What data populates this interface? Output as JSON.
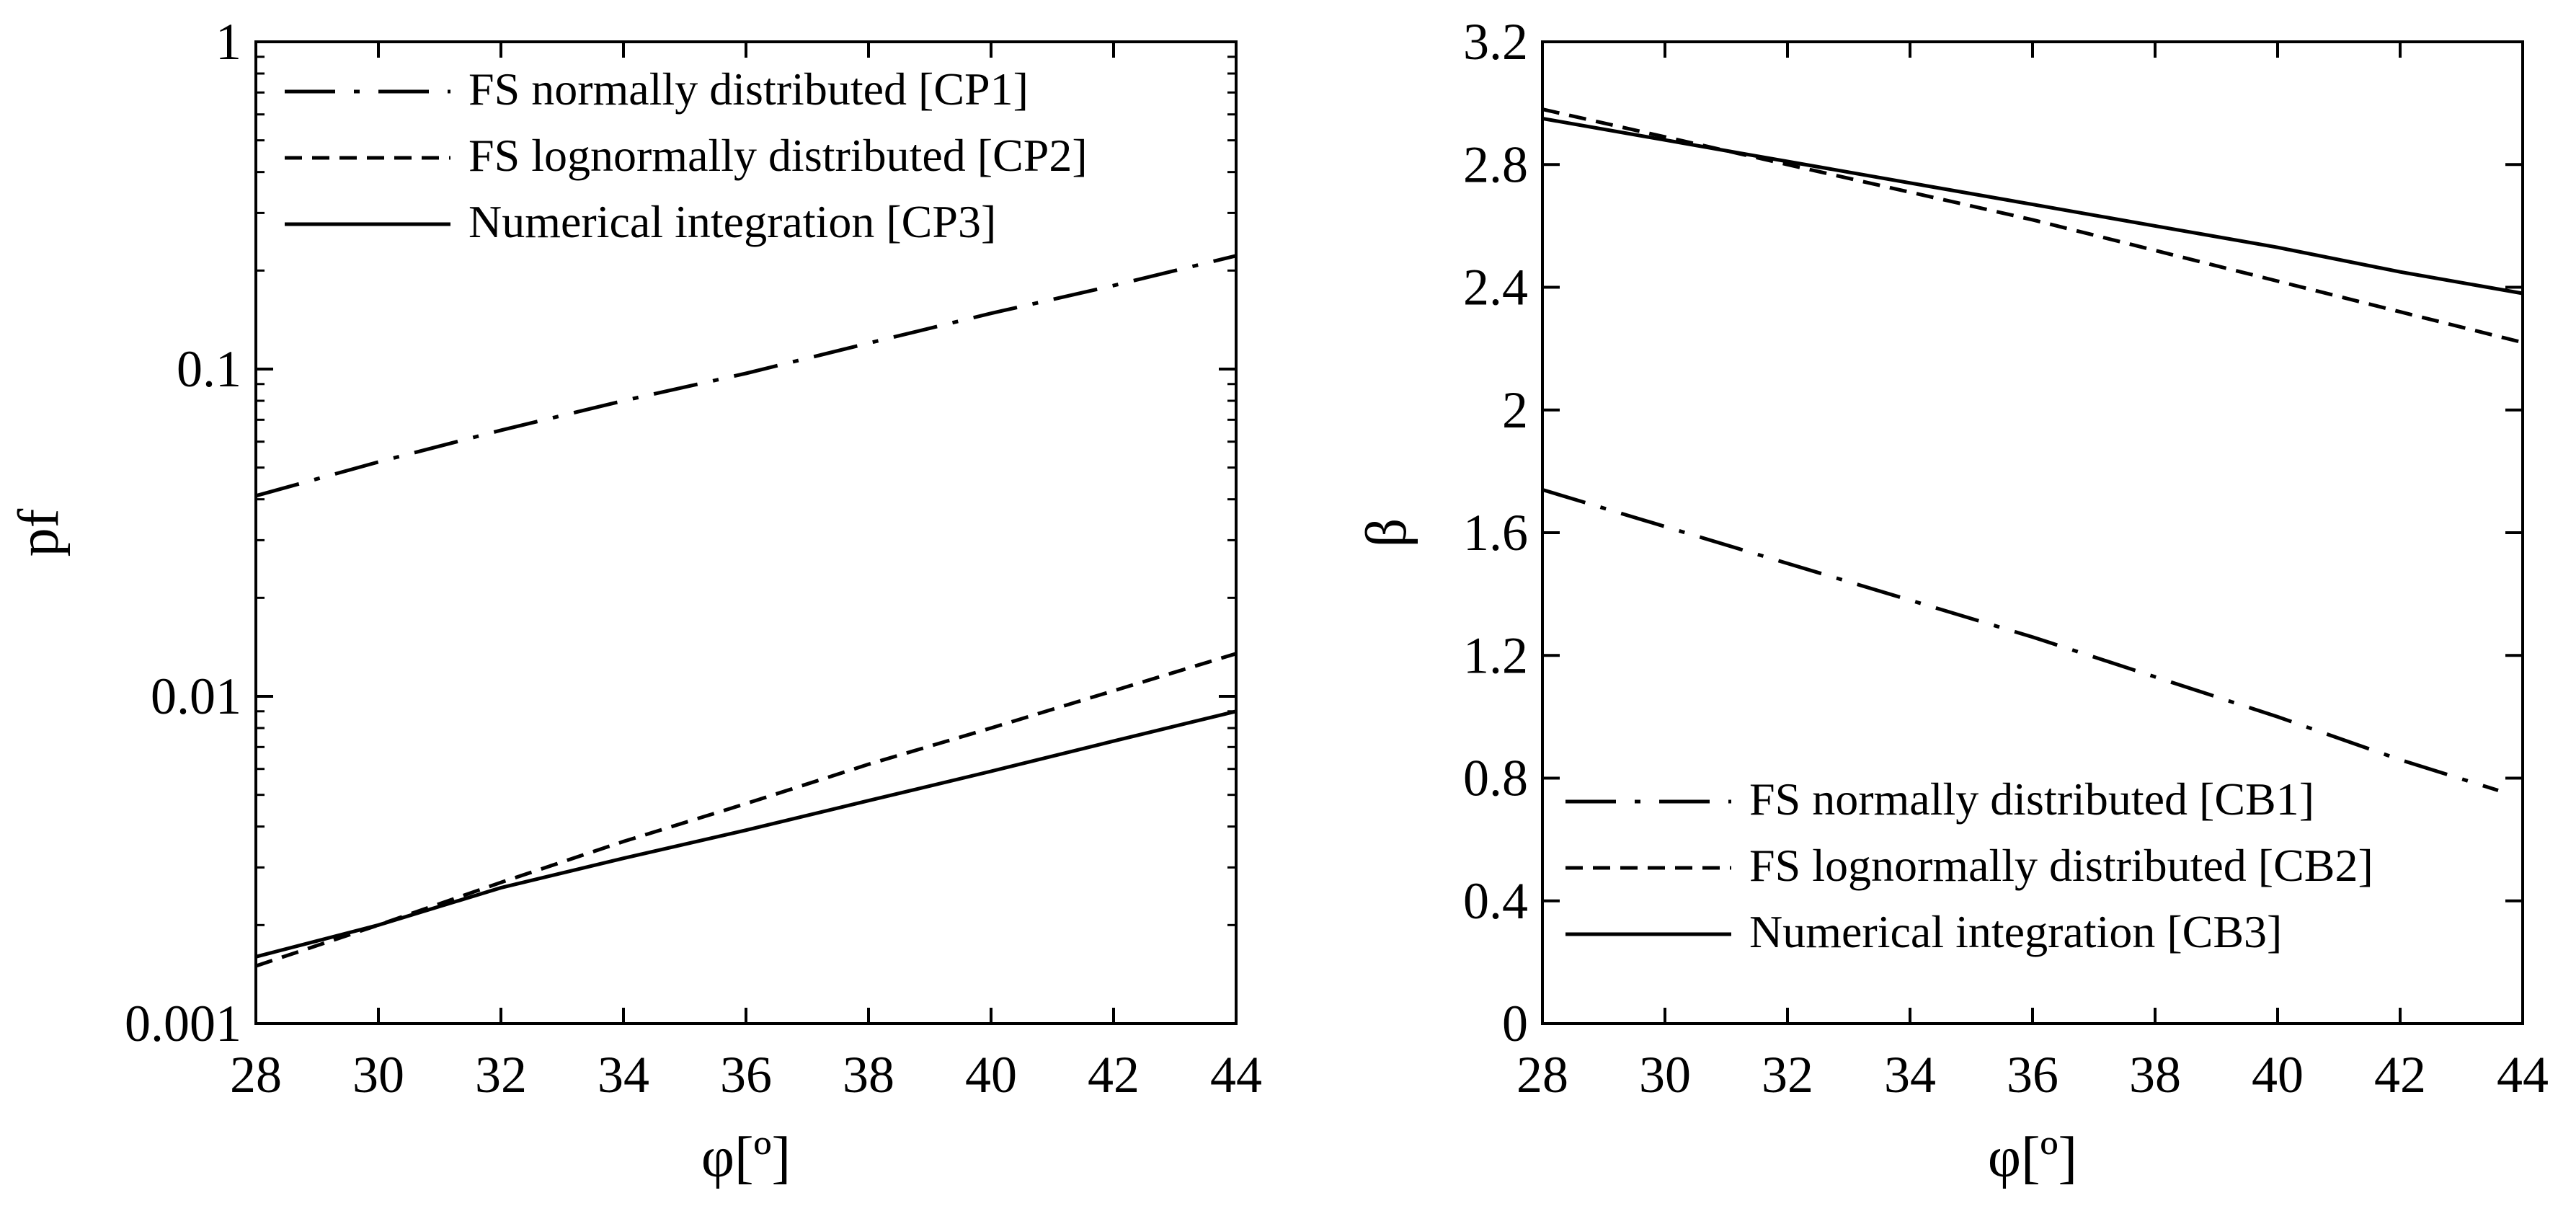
{
  "chart_data": [
    {
      "type": "line",
      "id": "left",
      "yscale": "log",
      "xlabel": "φ[º]",
      "ylabel": "pf",
      "xlim": [
        28,
        44
      ],
      "ylim": [
        0.001,
        1
      ],
      "xticks": [
        28,
        30,
        32,
        34,
        36,
        38,
        40,
        42,
        44
      ],
      "xtick_labels": [
        "28",
        "30",
        "32",
        "34",
        "36",
        "38",
        "40",
        "42",
        "44"
      ],
      "yticks": [
        0.001,
        0.01,
        0.1,
        1
      ],
      "ytick_labels": [
        "0.001",
        "0.01",
        "0.1",
        "1"
      ],
      "legend_position": "top-left",
      "series": [
        {
          "name": "FS normally distributed [CP1]",
          "style": "dashdot",
          "x": [
            28,
            30,
            32,
            34,
            36,
            38,
            40,
            42,
            44
          ],
          "values": [
            0.041,
            0.052,
            0.065,
            0.08,
            0.097,
            0.12,
            0.148,
            0.18,
            0.222
          ]
        },
        {
          "name": "FS lognormally distributed [CP2]",
          "style": "dashed",
          "x": [
            28,
            30,
            32,
            34,
            36,
            38,
            40,
            42,
            44
          ],
          "values": [
            0.0015,
            0.002,
            0.0027,
            0.0036,
            0.0047,
            0.0062,
            0.008,
            0.0104,
            0.0135
          ]
        },
        {
          "name": "Numerical integration [CP3]",
          "style": "solid",
          "x": [
            28,
            30,
            32,
            34,
            36,
            38,
            40,
            42,
            44
          ],
          "values": [
            0.0016,
            0.002,
            0.0026,
            0.0032,
            0.0039,
            0.0048,
            0.0059,
            0.0073,
            0.009
          ]
        }
      ]
    },
    {
      "type": "line",
      "id": "right",
      "yscale": "linear",
      "xlabel": "φ[º]",
      "ylabel": "β",
      "xlim": [
        28,
        44
      ],
      "ylim": [
        0,
        3.2
      ],
      "xticks": [
        28,
        30,
        32,
        34,
        36,
        38,
        40,
        42,
        44
      ],
      "xtick_labels": [
        "28",
        "30",
        "32",
        "34",
        "36",
        "38",
        "40",
        "42",
        "44"
      ],
      "yticks": [
        0,
        0.4,
        0.8,
        1.2,
        1.6,
        2,
        2.4,
        2.8,
        3.2
      ],
      "ytick_labels": [
        "0",
        "0.4",
        "0.8",
        "1.2",
        "1.6",
        "2",
        "2.4",
        "2.8",
        "3.2"
      ],
      "legend_position": "bottom-left",
      "series": [
        {
          "name": "FS normally distributed [CB1]",
          "style": "dashdot",
          "x": [
            28,
            30,
            32,
            34,
            36,
            38,
            40,
            42,
            43.6
          ],
          "values": [
            1.74,
            1.62,
            1.5,
            1.38,
            1.26,
            1.13,
            1.0,
            0.86,
            0.76
          ]
        },
        {
          "name": "FS lognormally distributed [CB2]",
          "style": "dashed",
          "x": [
            28,
            30,
            32,
            34,
            36,
            38,
            40,
            42,
            44
          ],
          "values": [
            2.98,
            2.89,
            2.8,
            2.71,
            2.62,
            2.52,
            2.42,
            2.32,
            2.22
          ]
        },
        {
          "name": "Numerical integration [CB3]",
          "style": "solid",
          "x": [
            28,
            30,
            32,
            34,
            36,
            38,
            40,
            42,
            44
          ],
          "values": [
            2.95,
            2.88,
            2.81,
            2.74,
            2.67,
            2.6,
            2.53,
            2.45,
            2.38
          ]
        }
      ]
    }
  ]
}
